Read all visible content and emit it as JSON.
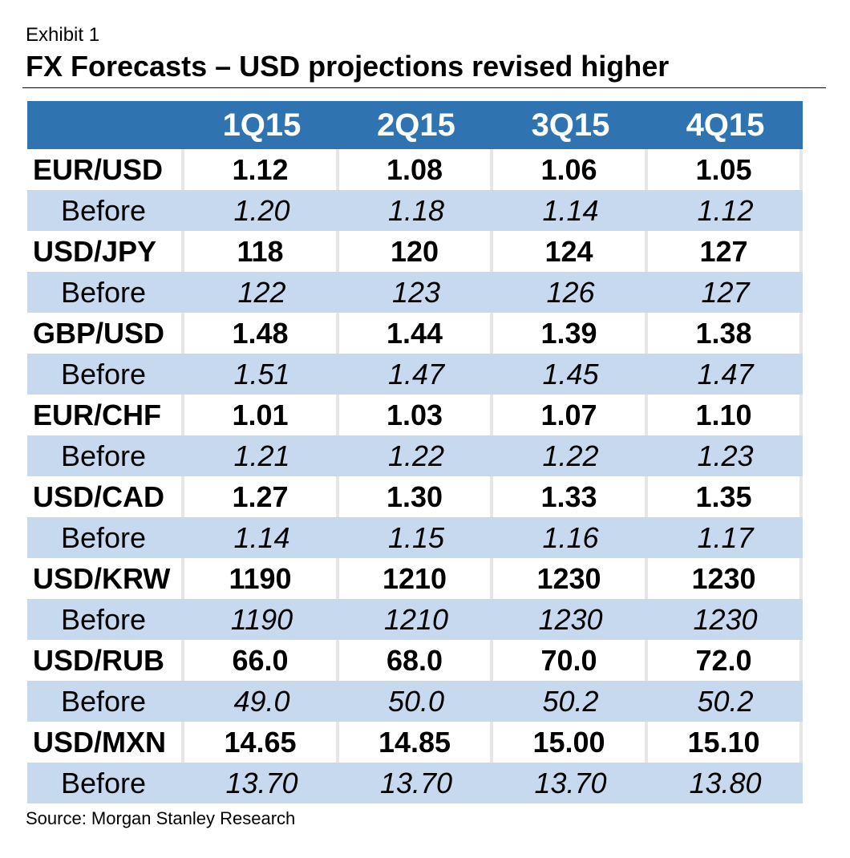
{
  "exhibit_label": "Exhibit 1",
  "title": "FX Forecasts – USD projections revised higher",
  "source": "Source: Morgan Stanley Research",
  "colors": {
    "header_bg": "#2f73b0",
    "header_text": "#ffffff",
    "before_row_bg": "#c6d9ef",
    "cell_border": "#e6e6e6"
  },
  "chart_data": {
    "type": "table",
    "title": "FX Forecasts – USD projections revised higher",
    "columns": [
      "1Q15",
      "2Q15",
      "3Q15",
      "4Q15"
    ],
    "before_label": "Before",
    "rows": [
      {
        "pair": "EUR/USD",
        "values": [
          "1.12",
          "1.08",
          "1.06",
          "1.05"
        ],
        "before": [
          "1.20",
          "1.18",
          "1.14",
          "1.12"
        ]
      },
      {
        "pair": "USD/JPY",
        "values": [
          "118",
          "120",
          "124",
          "127"
        ],
        "before": [
          "122",
          "123",
          "126",
          "127"
        ]
      },
      {
        "pair": "GBP/USD",
        "values": [
          "1.48",
          "1.44",
          "1.39",
          "1.38"
        ],
        "before": [
          "1.51",
          "1.47",
          "1.45",
          "1.47"
        ]
      },
      {
        "pair": "EUR/CHF",
        "values": [
          "1.01",
          "1.03",
          "1.07",
          "1.10"
        ],
        "before": [
          "1.21",
          "1.22",
          "1.22",
          "1.23"
        ]
      },
      {
        "pair": "USD/CAD",
        "values": [
          "1.27",
          "1.30",
          "1.33",
          "1.35"
        ],
        "before": [
          "1.14",
          "1.15",
          "1.16",
          "1.17"
        ]
      },
      {
        "pair": "USD/KRW",
        "values": [
          "1190",
          "1210",
          "1230",
          "1230"
        ],
        "before": [
          "1190",
          "1210",
          "1230",
          "1230"
        ]
      },
      {
        "pair": "USD/RUB",
        "values": [
          "66.0",
          "68.0",
          "70.0",
          "72.0"
        ],
        "before": [
          "49.0",
          "50.0",
          "50.2",
          "50.2"
        ]
      },
      {
        "pair": "USD/MXN",
        "values": [
          "14.65",
          "14.85",
          "15.00",
          "15.10"
        ],
        "before": [
          "13.70",
          "13.70",
          "13.70",
          "13.80"
        ]
      }
    ]
  }
}
